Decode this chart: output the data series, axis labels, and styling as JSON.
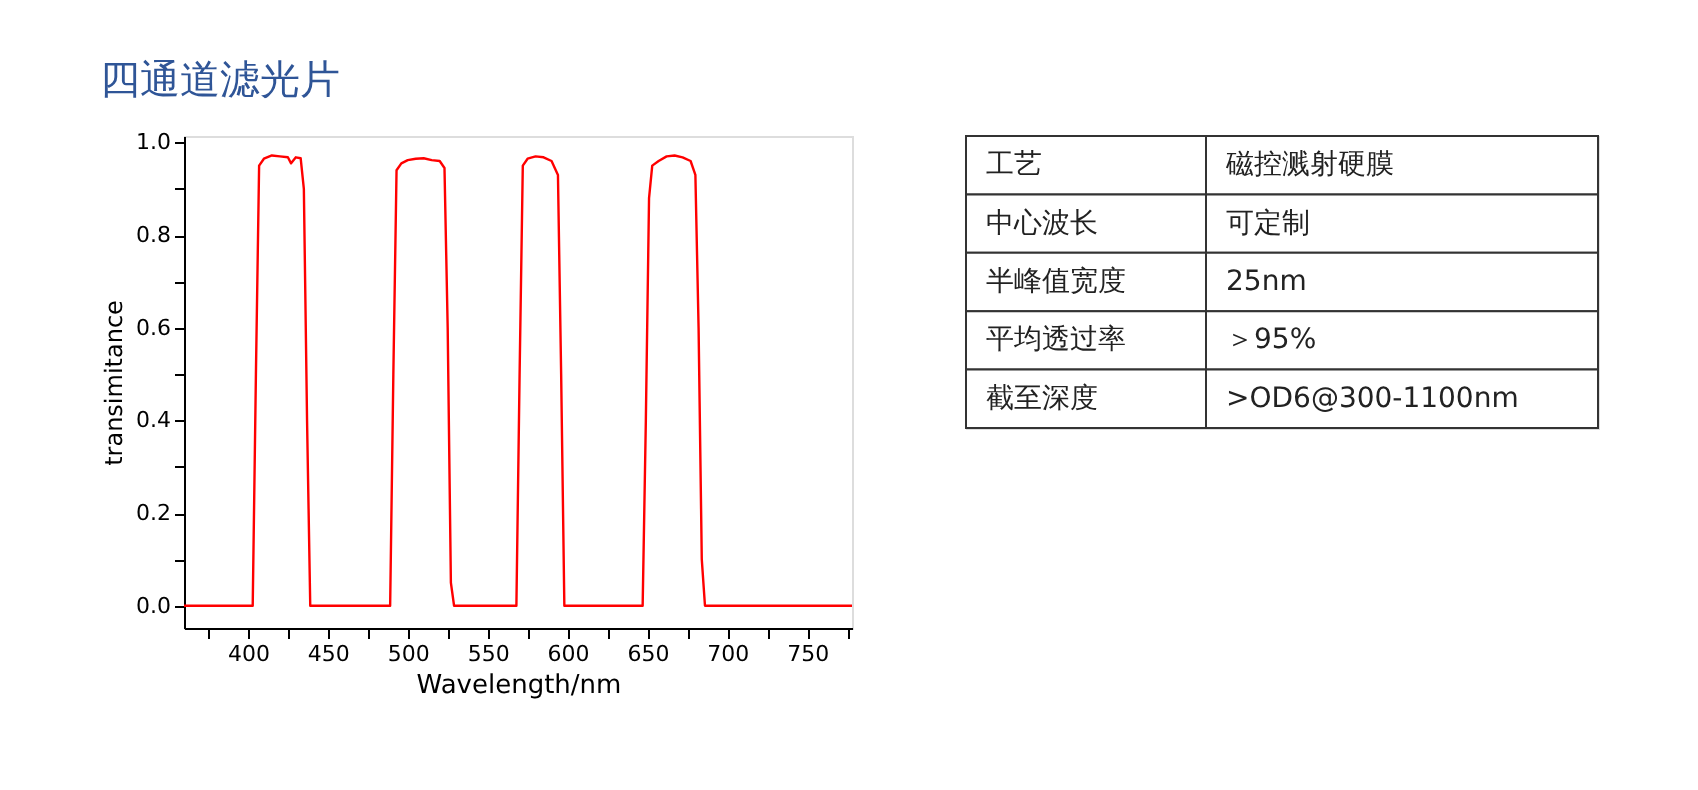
{
  "chart_data": [
    {
      "type": "line",
      "title": "四通道滤光片",
      "xlabel": "Wavelength/nm",
      "ylabel": "transimitance",
      "grid": false,
      "marker": "none",
      "line_style": "solid",
      "xlim": [
        360,
        778
      ],
      "ylim": [
        -0.048,
        1.014
      ],
      "xticks": [
        {
          "value": 375,
          "label": null
        },
        400,
        {
          "value": 425,
          "label": null
        },
        450,
        {
          "value": 475,
          "label": null
        },
        500,
        {
          "value": 525,
          "label": null
        },
        550,
        {
          "value": 575,
          "label": null
        },
        600,
        {
          "value": 625,
          "label": null
        },
        650,
        {
          "value": 675,
          "label": null
        },
        700,
        {
          "value": 725,
          "label": null
        },
        750,
        {
          "value": 775,
          "label": null
        }
      ],
      "yticks": [
        {
          "value": 0,
          "label": "0.0"
        },
        {
          "value": 0.1,
          "label": null
        },
        0.2,
        {
          "value": 0.3,
          "label": null
        },
        0.4,
        {
          "value": 0.5,
          "label": null
        },
        0.6,
        {
          "value": 0.7,
          "label": null
        },
        0.8,
        {
          "value": 0.9,
          "label": null
        },
        {
          "value": 1,
          "label": "1.0"
        }
      ],
      "series": [
        {
          "color": "#ff0000",
          "x": [
            360,
            403,
            405,
            407,
            410,
            415,
            420,
            425,
            427,
            430,
            433,
            435,
            437,
            439,
            441,
            489,
            491,
            493,
            496,
            500,
            505,
            510,
            515,
            520,
            523,
            525,
            527,
            529,
            568,
            570,
            572,
            575,
            580,
            585,
            590,
            594,
            596,
            598,
            647,
            649,
            651,
            653,
            657,
            662,
            667,
            672,
            677,
            680,
            682,
            684,
            686,
            778
          ],
          "values": [
            0,
            0,
            0.5,
            0.95,
            0.965,
            0.972,
            0.97,
            0.968,
            0.955,
            0.968,
            0.966,
            0.9,
            0.4,
            0,
            0,
            0,
            0.5,
            0.94,
            0.955,
            0.962,
            0.965,
            0.966,
            0.962,
            0.96,
            0.945,
            0.6,
            0.05,
            0,
            0,
            0.5,
            0.95,
            0.965,
            0.97,
            0.968,
            0.96,
            0.93,
            0.5,
            0,
            0,
            0.4,
            0.88,
            0.95,
            0.96,
            0.97,
            0.972,
            0.968,
            0.96,
            0.93,
            0.6,
            0.1,
            0,
            0
          ]
        }
      ]
    },
    {
      "type": "other",
      "annotations": [
        "工艺",
        "磁控溅射硬膜",
        "中心波长",
        "可定制",
        "半峰值宽度",
        "25nm",
        "平均透过率",
        "＞95%",
        "截至深度",
        ">OD6@300-1100nm"
      ]
    }
  ]
}
